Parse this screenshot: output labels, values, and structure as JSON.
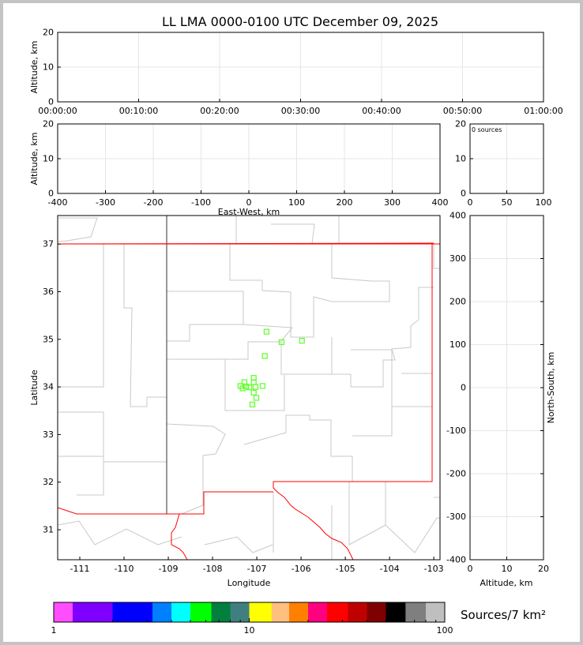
{
  "chart_data": [
    {
      "id": "time_height",
      "type": "scatter",
      "title": "LL LMA 0000-0100 UTC December 09, 2025",
      "xlabel": "",
      "ylabel": "Altitude, km",
      "xticks": [
        "00:00:00",
        "00:10:00",
        "00:20:00",
        "00:30:00",
        "00:40:00",
        "00:50:00",
        "01:00:00"
      ],
      "ylim": [
        0,
        20
      ],
      "yticks": [
        0,
        10,
        20
      ],
      "grid": true,
      "points": []
    },
    {
      "id": "ew_height",
      "type": "scatter",
      "xlabel": "East-West, km",
      "ylabel": "Altitude, km",
      "xlim": [
        -400,
        400
      ],
      "xticks": [
        -400,
        -300,
        -200,
        -100,
        0,
        100,
        200,
        300,
        400
      ],
      "ylim": [
        0,
        20
      ],
      "yticks": [
        0,
        10,
        20
      ],
      "grid": true,
      "points": []
    },
    {
      "id": "histogram",
      "type": "bar",
      "annotation": "0 sources",
      "xlim": [
        0,
        100
      ],
      "xticks": [
        0,
        50,
        100
      ],
      "ylim": [
        0,
        20
      ],
      "yticks": [
        0,
        10,
        20
      ],
      "grid": true
    },
    {
      "id": "plan_view",
      "type": "scatter",
      "xlabel": "Longitude",
      "ylabel": "Latitude",
      "xlim": [
        -111.5,
        -102.86
      ],
      "ylim": [
        30.37,
        37.6
      ],
      "xticks": [
        -111,
        -110,
        -109,
        -108,
        -107,
        -106,
        -105,
        -104,
        -103
      ],
      "yticks": [
        31,
        32,
        33,
        34,
        35,
        36,
        37
      ],
      "marker": "square-open",
      "marker_color": "#66ff33",
      "points": [
        {
          "lon": -106.78,
          "lat": 35.16
        },
        {
          "lon": -106.44,
          "lat": 34.94
        },
        {
          "lon": -105.98,
          "lat": 34.97
        },
        {
          "lon": -106.82,
          "lat": 34.65
        },
        {
          "lon": -107.07,
          "lat": 34.19
        },
        {
          "lon": -107.28,
          "lat": 34.1
        },
        {
          "lon": -107.07,
          "lat": 34.1
        },
        {
          "lon": -107.37,
          "lat": 34.02
        },
        {
          "lon": -107.24,
          "lat": 34.01
        },
        {
          "lon": -107.17,
          "lat": 33.99
        },
        {
          "lon": -107.03,
          "lat": 34.0
        },
        {
          "lon": -106.87,
          "lat": 34.02
        },
        {
          "lon": -107.32,
          "lat": 33.97
        },
        {
          "lon": -107.07,
          "lat": 33.88
        },
        {
          "lon": -107.01,
          "lat": 33.77
        },
        {
          "lon": -107.1,
          "lat": 33.63
        }
      ]
    },
    {
      "id": "ns_height",
      "type": "scatter",
      "xlabel": "Altitude, km",
      "ylabel": "North-South, km",
      "xlim": [
        0,
        20
      ],
      "xticks": [
        0,
        10,
        20
      ],
      "ylim": [
        -400,
        400
      ],
      "yticks": [
        -400,
        -300,
        -200,
        -100,
        0,
        100,
        200,
        300,
        400
      ],
      "grid": true,
      "points": []
    },
    {
      "id": "colorbar",
      "type": "heatmap",
      "label": "Sources/7 km²",
      "scale": "log",
      "range": [
        1,
        100
      ],
      "ticks": [
        "1",
        "10",
        "100"
      ],
      "colors": [
        "#ff4dff",
        "#7f00ff",
        "#0000ff",
        "#007fff",
        "#00ffff",
        "#00ff00",
        "#007f3f",
        "#3f7f7f",
        "#ffff00",
        "#ffbf7f",
        "#ff7f00",
        "#ff007f",
        "#ff0000",
        "#bf0000",
        "#7f0000",
        "#000000",
        "#7f7f7f",
        "#bfbfbf",
        "#ffffff"
      ]
    }
  ]
}
